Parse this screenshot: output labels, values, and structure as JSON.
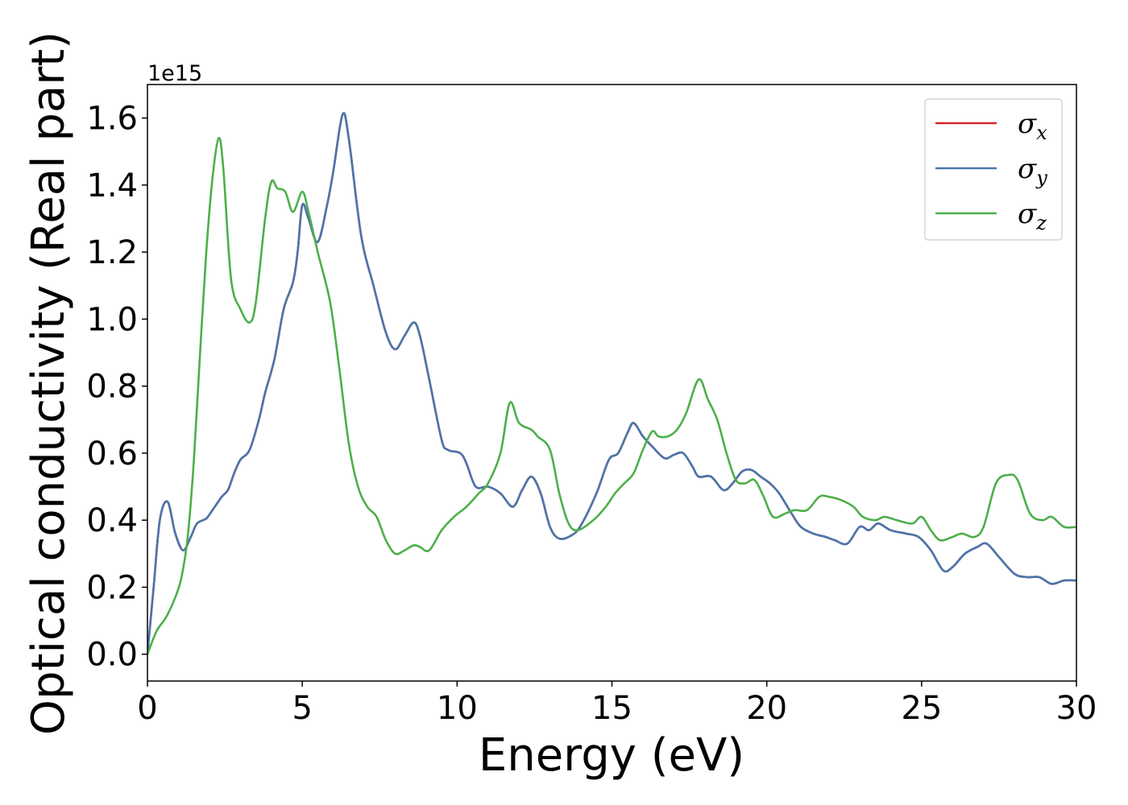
{
  "chart_data": {
    "type": "line",
    "title": "",
    "xlabel": "Energy (eV)",
    "ylabel": "Optical conductivity (Real part)",
    "y_offset_text": "1e15",
    "y_scale": 1000000000000000.0,
    "xlim": [
      0,
      30
    ],
    "ylim": [
      -0.08,
      1.7
    ],
    "xticks": [
      0,
      5,
      10,
      15,
      20,
      25,
      30
    ],
    "xtick_labels": [
      "0",
      "5",
      "10",
      "15",
      "20",
      "25",
      "30"
    ],
    "yticks": [
      0.0,
      0.2,
      0.4,
      0.6,
      0.8,
      1.0,
      1.2,
      1.4,
      1.6
    ],
    "ytick_labels": [
      "0.0",
      "0.2",
      "0.4",
      "0.6",
      "0.8",
      "1.0",
      "1.2",
      "1.4",
      "1.6"
    ],
    "grid": false,
    "legend_position": "top-right",
    "series": [
      {
        "name": "σx",
        "symbol": "σ",
        "subscript": "x",
        "color": "#d62728",
        "points": [
          [
            0,
            0
          ],
          [
            0.2,
            0.2
          ],
          [
            0.4,
            0.4
          ],
          [
            0.65,
            0.455
          ],
          [
            0.9,
            0.36
          ],
          [
            1.15,
            0.31
          ],
          [
            1.4,
            0.35
          ],
          [
            1.6,
            0.39
          ],
          [
            1.9,
            0.405
          ],
          [
            2.1,
            0.43
          ],
          [
            2.4,
            0.47
          ],
          [
            2.6,
            0.49
          ],
          [
            2.8,
            0.54
          ],
          [
            3.0,
            0.58
          ],
          [
            3.3,
            0.61
          ],
          [
            3.6,
            0.7
          ],
          [
            3.8,
            0.78
          ],
          [
            4.1,
            0.88
          ],
          [
            4.4,
            1.03
          ],
          [
            4.7,
            1.11
          ],
          [
            4.85,
            1.2
          ],
          [
            5.0,
            1.34
          ],
          [
            5.2,
            1.3
          ],
          [
            5.5,
            1.23
          ],
          [
            5.8,
            1.34
          ],
          [
            6.0,
            1.44
          ],
          [
            6.3,
            1.61
          ],
          [
            6.5,
            1.54
          ],
          [
            6.9,
            1.25
          ],
          [
            7.3,
            1.1
          ],
          [
            7.7,
            0.96
          ],
          [
            8.0,
            0.91
          ],
          [
            8.3,
            0.95
          ],
          [
            8.6,
            0.99
          ],
          [
            8.8,
            0.95
          ],
          [
            9.1,
            0.82
          ],
          [
            9.5,
            0.64
          ],
          [
            9.7,
            0.61
          ],
          [
            10.1,
            0.6
          ],
          [
            10.3,
            0.57
          ],
          [
            10.6,
            0.5
          ],
          [
            11.0,
            0.5
          ],
          [
            11.4,
            0.48
          ],
          [
            11.8,
            0.44
          ],
          [
            12.1,
            0.49
          ],
          [
            12.4,
            0.53
          ],
          [
            12.7,
            0.48
          ],
          [
            13.0,
            0.38
          ],
          [
            13.3,
            0.345
          ],
          [
            13.7,
            0.355
          ],
          [
            14.0,
            0.385
          ],
          [
            14.5,
            0.48
          ],
          [
            14.9,
            0.58
          ],
          [
            15.2,
            0.6
          ],
          [
            15.5,
            0.66
          ],
          [
            15.7,
            0.69
          ],
          [
            16.0,
            0.65
          ],
          [
            16.3,
            0.62
          ],
          [
            16.7,
            0.585
          ],
          [
            17.0,
            0.595
          ],
          [
            17.3,
            0.6
          ],
          [
            17.6,
            0.56
          ],
          [
            17.8,
            0.53
          ],
          [
            18.2,
            0.53
          ],
          [
            18.6,
            0.49
          ],
          [
            18.9,
            0.51
          ],
          [
            19.2,
            0.545
          ],
          [
            19.5,
            0.55
          ],
          [
            19.8,
            0.53
          ],
          [
            20.1,
            0.51
          ],
          [
            20.4,
            0.48
          ],
          [
            20.8,
            0.42
          ],
          [
            21.1,
            0.38
          ],
          [
            21.5,
            0.36
          ],
          [
            21.9,
            0.35
          ],
          [
            22.2,
            0.34
          ],
          [
            22.6,
            0.33
          ],
          [
            23.0,
            0.38
          ],
          [
            23.3,
            0.37
          ],
          [
            23.6,
            0.39
          ],
          [
            24.0,
            0.37
          ],
          [
            24.5,
            0.36
          ],
          [
            24.9,
            0.35
          ],
          [
            25.3,
            0.31
          ],
          [
            25.7,
            0.25
          ],
          [
            26.0,
            0.26
          ],
          [
            26.4,
            0.3
          ],
          [
            26.8,
            0.32
          ],
          [
            27.1,
            0.33
          ],
          [
            27.5,
            0.29
          ],
          [
            28.0,
            0.24
          ],
          [
            28.4,
            0.23
          ],
          [
            28.8,
            0.23
          ],
          [
            29.2,
            0.21
          ],
          [
            29.6,
            0.22
          ],
          [
            30.0,
            0.22
          ]
        ]
      },
      {
        "name": "σy",
        "symbol": "σ",
        "subscript": "y",
        "color": "#4a76ac",
        "points": [
          [
            0,
            0
          ],
          [
            0.2,
            0.2
          ],
          [
            0.4,
            0.4
          ],
          [
            0.65,
            0.455
          ],
          [
            0.9,
            0.36
          ],
          [
            1.15,
            0.31
          ],
          [
            1.4,
            0.35
          ],
          [
            1.6,
            0.39
          ],
          [
            1.9,
            0.405
          ],
          [
            2.1,
            0.43
          ],
          [
            2.4,
            0.47
          ],
          [
            2.6,
            0.49
          ],
          [
            2.8,
            0.54
          ],
          [
            3.0,
            0.58
          ],
          [
            3.3,
            0.61
          ],
          [
            3.6,
            0.7
          ],
          [
            3.8,
            0.78
          ],
          [
            4.1,
            0.88
          ],
          [
            4.4,
            1.03
          ],
          [
            4.7,
            1.11
          ],
          [
            4.85,
            1.2
          ],
          [
            5.0,
            1.34
          ],
          [
            5.2,
            1.3
          ],
          [
            5.5,
            1.23
          ],
          [
            5.8,
            1.34
          ],
          [
            6.0,
            1.44
          ],
          [
            6.3,
            1.61
          ],
          [
            6.5,
            1.54
          ],
          [
            6.9,
            1.25
          ],
          [
            7.3,
            1.1
          ],
          [
            7.7,
            0.96
          ],
          [
            8.0,
            0.91
          ],
          [
            8.3,
            0.95
          ],
          [
            8.6,
            0.99
          ],
          [
            8.8,
            0.95
          ],
          [
            9.1,
            0.82
          ],
          [
            9.5,
            0.64
          ],
          [
            9.7,
            0.61
          ],
          [
            10.1,
            0.6
          ],
          [
            10.3,
            0.57
          ],
          [
            10.6,
            0.5
          ],
          [
            11.0,
            0.5
          ],
          [
            11.4,
            0.48
          ],
          [
            11.8,
            0.44
          ],
          [
            12.1,
            0.49
          ],
          [
            12.4,
            0.53
          ],
          [
            12.7,
            0.48
          ],
          [
            13.0,
            0.38
          ],
          [
            13.3,
            0.345
          ],
          [
            13.7,
            0.355
          ],
          [
            14.0,
            0.385
          ],
          [
            14.5,
            0.48
          ],
          [
            14.9,
            0.58
          ],
          [
            15.2,
            0.6
          ],
          [
            15.5,
            0.66
          ],
          [
            15.7,
            0.69
          ],
          [
            16.0,
            0.65
          ],
          [
            16.3,
            0.62
          ],
          [
            16.7,
            0.585
          ],
          [
            17.0,
            0.595
          ],
          [
            17.3,
            0.6
          ],
          [
            17.6,
            0.56
          ],
          [
            17.8,
            0.53
          ],
          [
            18.2,
            0.53
          ],
          [
            18.6,
            0.49
          ],
          [
            18.9,
            0.51
          ],
          [
            19.2,
            0.545
          ],
          [
            19.5,
            0.55
          ],
          [
            19.8,
            0.53
          ],
          [
            20.1,
            0.51
          ],
          [
            20.4,
            0.48
          ],
          [
            20.8,
            0.42
          ],
          [
            21.1,
            0.38
          ],
          [
            21.5,
            0.36
          ],
          [
            21.9,
            0.35
          ],
          [
            22.2,
            0.34
          ],
          [
            22.6,
            0.33
          ],
          [
            23.0,
            0.38
          ],
          [
            23.3,
            0.37
          ],
          [
            23.6,
            0.39
          ],
          [
            24.0,
            0.37
          ],
          [
            24.5,
            0.36
          ],
          [
            24.9,
            0.35
          ],
          [
            25.3,
            0.31
          ],
          [
            25.7,
            0.25
          ],
          [
            26.0,
            0.26
          ],
          [
            26.4,
            0.3
          ],
          [
            26.8,
            0.32
          ],
          [
            27.1,
            0.33
          ],
          [
            27.5,
            0.29
          ],
          [
            28.0,
            0.24
          ],
          [
            28.4,
            0.23
          ],
          [
            28.8,
            0.23
          ],
          [
            29.2,
            0.21
          ],
          [
            29.6,
            0.22
          ],
          [
            30.0,
            0.22
          ]
        ]
      },
      {
        "name": "σz",
        "symbol": "σ",
        "subscript": "z",
        "color": "#4daf4a",
        "points": [
          [
            0,
            0
          ],
          [
            0.3,
            0.07
          ],
          [
            0.6,
            0.11
          ],
          [
            0.9,
            0.17
          ],
          [
            1.1,
            0.23
          ],
          [
            1.3,
            0.35
          ],
          [
            1.5,
            0.58
          ],
          [
            1.7,
            0.9
          ],
          [
            1.9,
            1.2
          ],
          [
            2.1,
            1.42
          ],
          [
            2.3,
            1.54
          ],
          [
            2.45,
            1.45
          ],
          [
            2.7,
            1.12
          ],
          [
            3.0,
            1.03
          ],
          [
            3.3,
            0.99
          ],
          [
            3.5,
            1.05
          ],
          [
            3.8,
            1.3
          ],
          [
            4.0,
            1.41
          ],
          [
            4.2,
            1.39
          ],
          [
            4.45,
            1.38
          ],
          [
            4.7,
            1.32
          ],
          [
            5.0,
            1.38
          ],
          [
            5.2,
            1.32
          ],
          [
            5.5,
            1.2
          ],
          [
            5.9,
            1.05
          ],
          [
            6.2,
            0.85
          ],
          [
            6.5,
            0.63
          ],
          [
            6.8,
            0.5
          ],
          [
            7.1,
            0.44
          ],
          [
            7.4,
            0.41
          ],
          [
            7.7,
            0.34
          ],
          [
            8.0,
            0.3
          ],
          [
            8.3,
            0.31
          ],
          [
            8.6,
            0.325
          ],
          [
            8.8,
            0.32
          ],
          [
            9.1,
            0.31
          ],
          [
            9.5,
            0.37
          ],
          [
            9.9,
            0.41
          ],
          [
            10.3,
            0.44
          ],
          [
            10.7,
            0.48
          ],
          [
            11.0,
            0.51
          ],
          [
            11.4,
            0.6
          ],
          [
            11.7,
            0.75
          ],
          [
            12.0,
            0.69
          ],
          [
            12.4,
            0.67
          ],
          [
            12.6,
            0.65
          ],
          [
            13.0,
            0.61
          ],
          [
            13.3,
            0.48
          ],
          [
            13.6,
            0.39
          ],
          [
            13.9,
            0.37
          ],
          [
            14.4,
            0.4
          ],
          [
            14.8,
            0.44
          ],
          [
            15.1,
            0.48
          ],
          [
            15.4,
            0.51
          ],
          [
            15.7,
            0.54
          ],
          [
            16.0,
            0.61
          ],
          [
            16.3,
            0.665
          ],
          [
            16.5,
            0.65
          ],
          [
            16.8,
            0.65
          ],
          [
            17.1,
            0.67
          ],
          [
            17.4,
            0.72
          ],
          [
            17.8,
            0.82
          ],
          [
            18.1,
            0.76
          ],
          [
            18.4,
            0.7
          ],
          [
            18.7,
            0.6
          ],
          [
            19.0,
            0.52
          ],
          [
            19.3,
            0.51
          ],
          [
            19.6,
            0.52
          ],
          [
            19.9,
            0.47
          ],
          [
            20.2,
            0.41
          ],
          [
            20.6,
            0.42
          ],
          [
            20.9,
            0.43
          ],
          [
            21.3,
            0.43
          ],
          [
            21.7,
            0.47
          ],
          [
            22.0,
            0.47
          ],
          [
            22.4,
            0.46
          ],
          [
            22.8,
            0.44
          ],
          [
            23.1,
            0.41
          ],
          [
            23.5,
            0.4
          ],
          [
            23.8,
            0.41
          ],
          [
            24.2,
            0.4
          ],
          [
            24.7,
            0.39
          ],
          [
            25.0,
            0.41
          ],
          [
            25.3,
            0.37
          ],
          [
            25.6,
            0.34
          ],
          [
            26.0,
            0.35
          ],
          [
            26.3,
            0.36
          ],
          [
            26.7,
            0.35
          ],
          [
            27.0,
            0.38
          ],
          [
            27.4,
            0.51
          ],
          [
            27.8,
            0.535
          ],
          [
            28.1,
            0.52
          ],
          [
            28.5,
            0.42
          ],
          [
            28.9,
            0.4
          ],
          [
            29.2,
            0.41
          ],
          [
            29.6,
            0.38
          ],
          [
            30.0,
            0.38
          ]
        ]
      }
    ]
  }
}
